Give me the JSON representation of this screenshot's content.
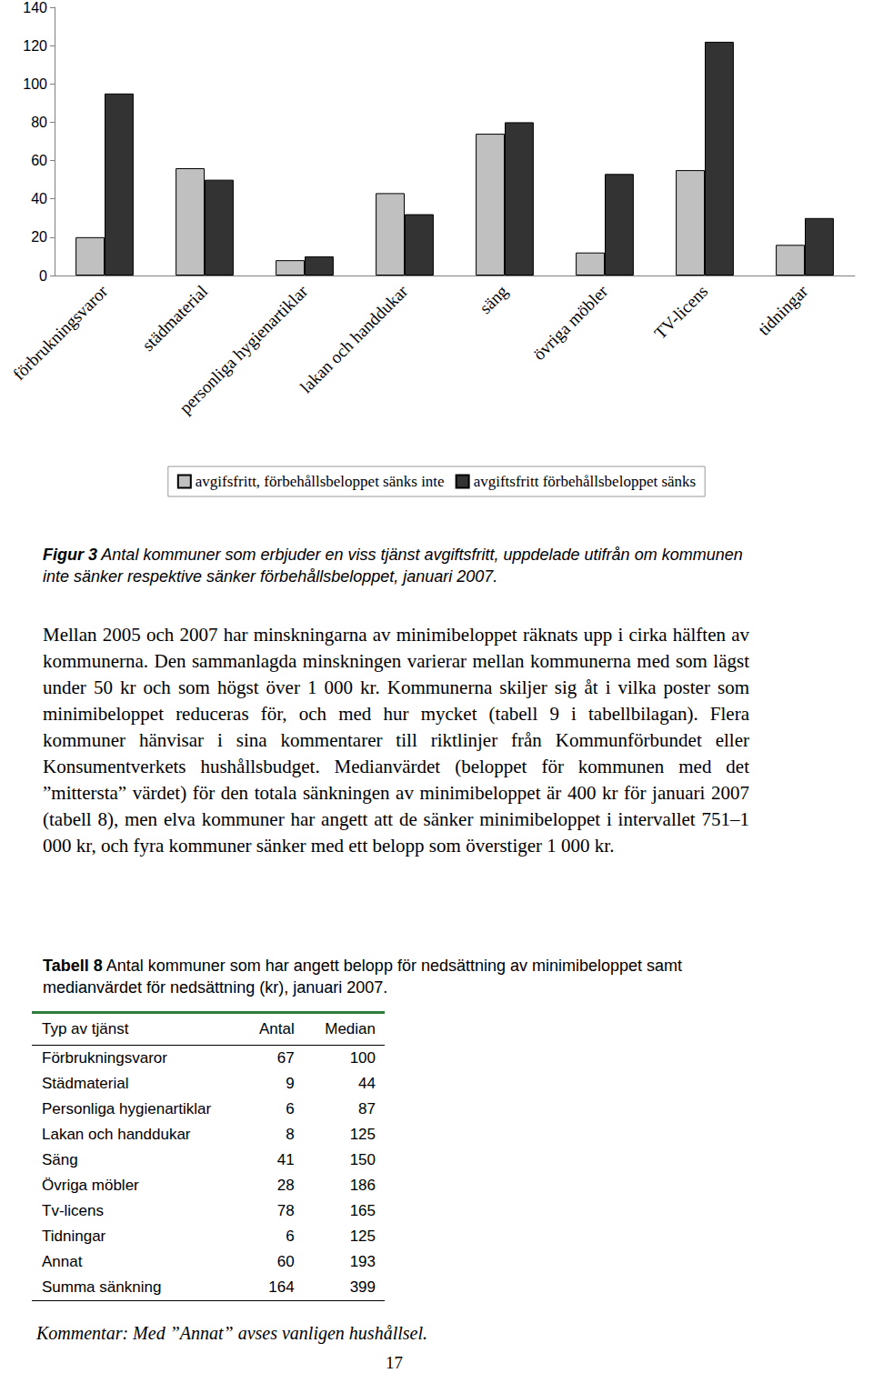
{
  "chart_data": {
    "type": "bar",
    "categories": [
      "förbrukningsvaror",
      "städmaterial",
      "personliga hygienartiklar",
      "lakan och handdukar",
      "säng",
      "övriga möbler",
      "TV-licens",
      "tidningar"
    ],
    "series": [
      {
        "name": "avgifsfritt, förbehållsbeloppet sänks inte",
        "color": "#c0c0c0",
        "values": [
          20,
          56,
          8,
          43,
          74,
          12,
          55,
          16
        ]
      },
      {
        "name": "avgiftsfritt förbehållsbeloppet sänks",
        "color": "#333333",
        "values": [
          95,
          50,
          10,
          32,
          80,
          53,
          122,
          30
        ]
      }
    ],
    "ylim": [
      0,
      140
    ],
    "yticks": [
      0,
      20,
      40,
      60,
      80,
      100,
      120,
      140
    ],
    "grid": false,
    "legend": "bottom"
  },
  "caption": {
    "label": "Figur 3",
    "text": "Antal kommuner som erbjuder en viss tjänst avgiftsfritt, uppdelade utifrån om kommunen inte sänker respektive sänker förbehållsbeloppet, januari 2007."
  },
  "paragraph": "Mellan 2005 och 2007 har minskningarna av minimibeloppet räknats upp i cirka hälften av kommunerna. Den sammanlagda minskningen varierar mellan kommunerna med som lägst under 50 kr och som högst över 1 000 kr. Kommunerna skiljer sig åt i vilka poster som minimibeloppet reduceras för, och med hur mycket (tabell 9 i tabellbilagan). Flera kommuner hänvisar i sina kommentarer till riktlinjer från Kommunförbundet eller Konsumentverkets hushållsbudget. Medianvärdet (beloppet för kommunen med det ”mittersta” värdet) för den totala sänkningen av minimibeloppet är 400 kr för januari 2007 (tabell 8), men elva kommuner har angett att de sänker minimibeloppet i intervallet 751–1 000 kr, och fyra kommuner sänker med ett belopp som överstiger 1 000 kr.",
  "table": {
    "caption": {
      "label": "Tabell 8",
      "text": "Antal kommuner som har angett belopp för nedsättning av minimibeloppet samt medianvärdet för nedsättning (kr), januari 2007."
    },
    "header": [
      "Typ av tjänst",
      "Antal",
      "Median"
    ],
    "rows": [
      [
        "Förbrukningsvaror",
        "67",
        "100"
      ],
      [
        "Städmaterial",
        "9",
        "44"
      ],
      [
        "Personliga hygienartiklar",
        "6",
        "87"
      ],
      [
        "Lakan och handdukar",
        "8",
        "125"
      ],
      [
        "Säng",
        "41",
        "150"
      ],
      [
        "Övriga möbler",
        "28",
        "186"
      ],
      [
        "Tv-licens",
        "78",
        "165"
      ],
      [
        "Tidningar",
        "6",
        "125"
      ],
      [
        "Annat",
        "60",
        "193"
      ],
      [
        "Summa sänkning",
        "164",
        "399"
      ]
    ]
  },
  "comment": "Kommentar: Med ”Annat” avses vanligen hushållsel.",
  "page_number": "17"
}
